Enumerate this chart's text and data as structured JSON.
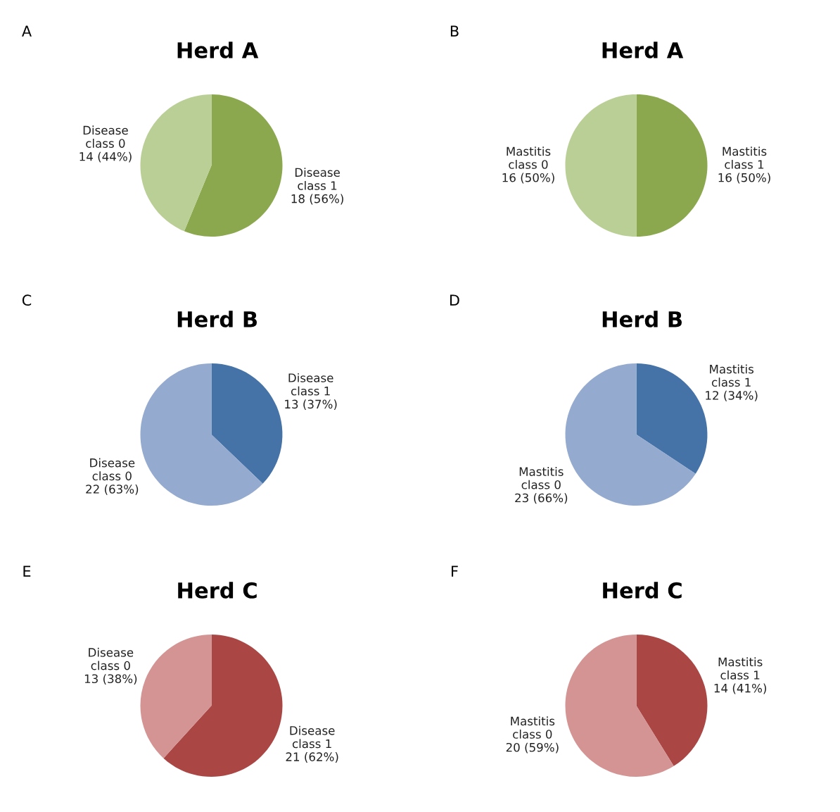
{
  "chart_data": [
    {
      "type": "pie",
      "title": "Herd A",
      "annotations": [
        "A"
      ],
      "categories": [
        "Disease class 1",
        "Disease class 0"
      ],
      "values": [
        18,
        14
      ],
      "colors": [
        "#8ba84e",
        "#bacf96"
      ],
      "value_labels": [
        "18 (56%)",
        "14 (44%)"
      ]
    },
    {
      "type": "pie",
      "title": "Herd A",
      "annotations": [
        "B"
      ],
      "categories": [
        "Mastitis class 1",
        "Mastitis class 0"
      ],
      "values": [
        16,
        16
      ],
      "colors": [
        "#8ba84e",
        "#bacf96"
      ],
      "value_labels": [
        "16 (50%)",
        "16 (50%)"
      ]
    },
    {
      "type": "pie",
      "title": "Herd B",
      "annotations": [
        "C"
      ],
      "categories": [
        "Disease class 1",
        "Disease class 0"
      ],
      "values": [
        13,
        22
      ],
      "colors": [
        "#4673a7",
        "#94aacf"
      ],
      "value_labels": [
        "13 (37%)",
        "22 (63%)"
      ]
    },
    {
      "type": "pie",
      "title": "Herd B",
      "annotations": [
        "D"
      ],
      "categories": [
        "Mastitis class 1",
        "Mastitis class 0"
      ],
      "values": [
        12,
        23
      ],
      "colors": [
        "#4673a7",
        "#94aacf"
      ],
      "value_labels": [
        "12 (34%)",
        "23 (66%)"
      ]
    },
    {
      "type": "pie",
      "title": "Herd C",
      "annotations": [
        "E"
      ],
      "categories": [
        "Disease class 1",
        "Disease class 0"
      ],
      "values": [
        21,
        13
      ],
      "colors": [
        "#aa4644",
        "#d49494"
      ],
      "value_labels": [
        "21 (62%)",
        "13 (38%)"
      ]
    },
    {
      "type": "pie",
      "title": "Herd C",
      "annotations": [
        "F"
      ],
      "categories": [
        "Mastitis class 1",
        "Mastitis class 0"
      ],
      "values": [
        14,
        20
      ],
      "colors": [
        "#aa4644",
        "#d49494"
      ],
      "value_labels": [
        "14 (41%)",
        "20 (59%)"
      ]
    }
  ]
}
